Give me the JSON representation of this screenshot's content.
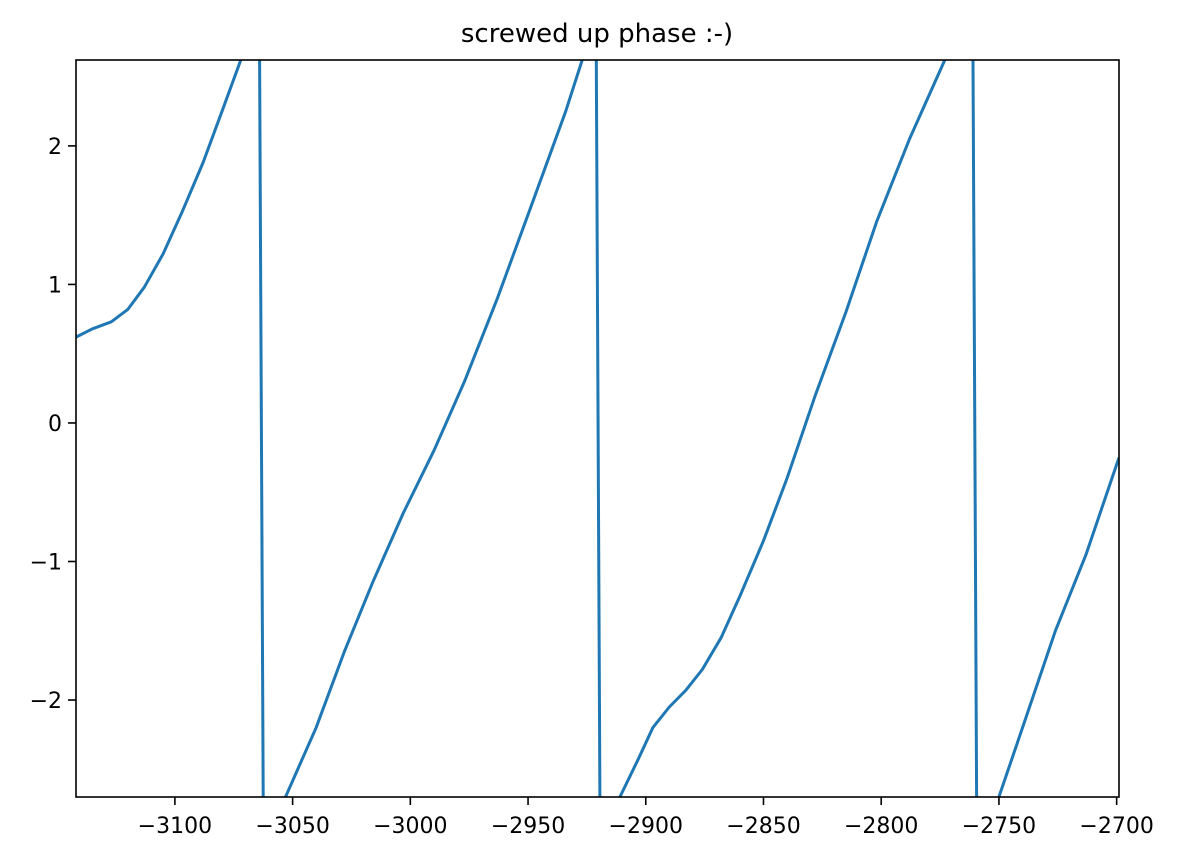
{
  "chart_data": {
    "type": "line",
    "title": "screwed up phase :-)",
    "xlabel": "",
    "ylabel": "",
    "xlim": [
      -3142,
      -2699
    ],
    "ylim": [
      -2.7,
      2.62
    ],
    "grid": false,
    "x_ticks": [
      {
        "value": -3100,
        "label": "−3100"
      },
      {
        "value": -3050,
        "label": "−3050"
      },
      {
        "value": -3000,
        "label": "−3000"
      },
      {
        "value": -2950,
        "label": "−2950"
      },
      {
        "value": -2900,
        "label": "−2900"
      },
      {
        "value": -2850,
        "label": "−2850"
      },
      {
        "value": -2800,
        "label": "−2800"
      },
      {
        "value": -2750,
        "label": "−2750"
      },
      {
        "value": -2700,
        "label": "−2700"
      }
    ],
    "y_ticks": [
      {
        "value": 2,
        "label": "2"
      },
      {
        "value": 1,
        "label": "1"
      },
      {
        "value": 0,
        "label": "0"
      },
      {
        "value": -1,
        "label": "−1"
      },
      {
        "value": -2,
        "label": "−2"
      }
    ],
    "series": [
      {
        "color": "#1f77b4",
        "segments": [
          [
            [
              -3142,
              0.62
            ],
            [
              -3135,
              0.68
            ],
            [
              -3127,
              0.73
            ],
            [
              -3120,
              0.82
            ],
            [
              -3113,
              0.98
            ],
            [
              -3105,
              1.22
            ],
            [
              -3097,
              1.52
            ],
            [
              -3088,
              1.88
            ],
            [
              -3080,
              2.25
            ],
            [
              -3072,
              2.62
            ]
          ],
          [
            [
              -3064,
              2.62
            ],
            [
              -3062.5,
              -2.7
            ]
          ],
          [
            [
              -3053,
              -2.7
            ],
            [
              -3040,
              -2.2
            ],
            [
              -3028,
              -1.65
            ],
            [
              -3016,
              -1.15
            ],
            [
              -3003,
              -0.65
            ],
            [
              -2990,
              -0.2
            ],
            [
              -2977,
              0.3
            ],
            [
              -2963,
              0.9
            ],
            [
              -2949,
              1.55
            ],
            [
              -2934,
              2.25
            ],
            [
              -2927,
              2.62
            ]
          ],
          [
            [
              -2921,
              2.62
            ],
            [
              -2919.5,
              -2.7
            ]
          ],
          [
            [
              -2911,
              -2.7
            ],
            [
              -2903,
              -2.42
            ],
            [
              -2897,
              -2.2
            ],
            [
              -2890,
              -2.05
            ],
            [
              -2883,
              -1.93
            ],
            [
              -2876,
              -1.78
            ],
            [
              -2868,
              -1.55
            ],
            [
              -2860,
              -1.25
            ],
            [
              -2850,
              -0.85
            ],
            [
              -2840,
              -0.4
            ],
            [
              -2828,
              0.2
            ],
            [
              -2815,
              0.8
            ],
            [
              -2802,
              1.45
            ],
            [
              -2788,
              2.05
            ],
            [
              -2773,
              2.62
            ]
          ],
          [
            [
              -2761,
              2.62
            ],
            [
              -2759.5,
              -2.7
            ]
          ],
          [
            [
              -2750,
              -2.7
            ],
            [
              -2738,
              -2.1
            ],
            [
              -2726,
              -1.5
            ],
            [
              -2713,
              -0.95
            ],
            [
              -2699,
              -0.25
            ]
          ]
        ]
      }
    ]
  }
}
